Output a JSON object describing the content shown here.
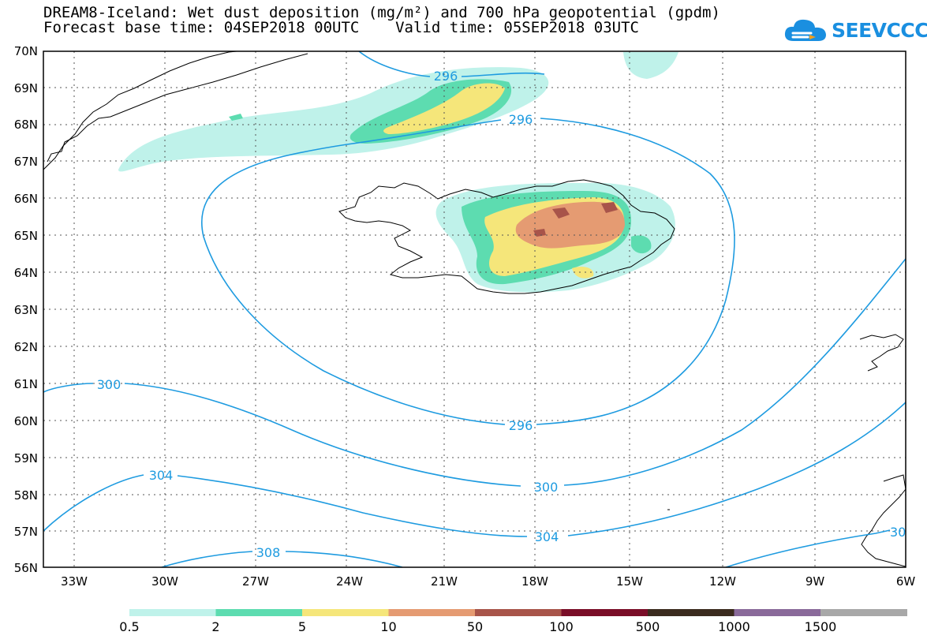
{
  "header": {
    "title_line1": "DREAM8-Iceland: Wet dust deposition (mg/m²) and 700 hPa geopotential (gpdm)",
    "title_line2": "Forecast base time: 04SEP2018 00UTC    Valid time: 05SEP2018 03UTC"
  },
  "logo": {
    "text": "SEEVCCC",
    "icon": "cloud-icon",
    "color": "#1a8fe0"
  },
  "axes": {
    "lat_labels": [
      "70N",
      "69N",
      "68N",
      "67N",
      "66N",
      "65N",
      "64N",
      "63N",
      "62N",
      "61N",
      "60N",
      "59N",
      "58N",
      "57N",
      "56N"
    ],
    "lon_labels": [
      "33W",
      "30W",
      "27W",
      "24W",
      "21W",
      "18W",
      "15W",
      "12W",
      "9W",
      "6W"
    ],
    "lat_range": [
      56,
      70
    ],
    "lon_range": [
      -34.4,
      -6
    ],
    "grid": "dotted"
  },
  "contours": {
    "color": "#1e9be0",
    "labels": [
      "296",
      "296",
      "296",
      "300",
      "300",
      "304",
      "304",
      "308",
      "30"
    ]
  },
  "legend": {
    "colors": [
      "#bff2ea",
      "#5ddcb0",
      "#f5e67a",
      "#e59b72",
      "#a8544a",
      "#7a0e28",
      "#3b2b1e",
      "#8a6a9a",
      "#a8a8a8"
    ],
    "labels": [
      "0.5",
      "2",
      "5",
      "10",
      "50",
      "100",
      "500",
      "1000",
      "1500"
    ]
  }
}
